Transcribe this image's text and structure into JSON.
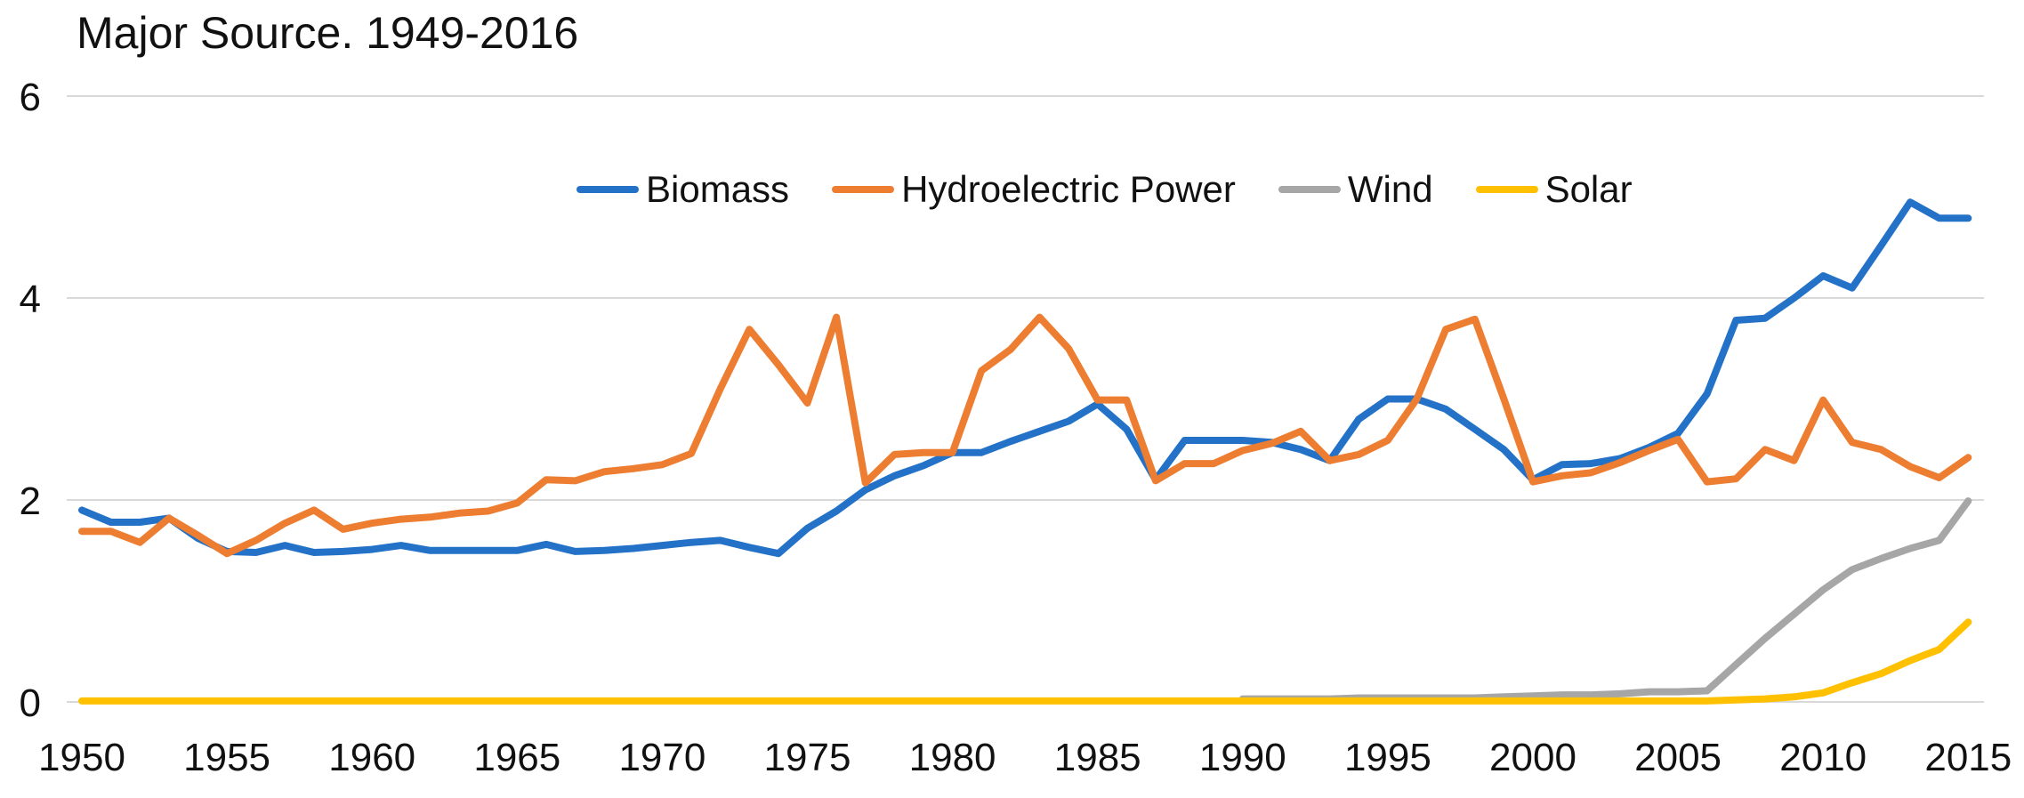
{
  "chart_data": {
    "type": "line",
    "title": "Major Source. 1949-2016",
    "xlabel": "",
    "ylabel": "",
    "x_start": 1950,
    "x_end": 2015,
    "x_step": 1,
    "xticks": [
      1950,
      1955,
      1960,
      1965,
      1970,
      1975,
      1980,
      1985,
      1990,
      1995,
      2000,
      2005,
      2010,
      2015
    ],
    "yticks": [
      0,
      2,
      4,
      6
    ],
    "ylim": [
      0,
      6
    ],
    "grid": "horizontal-only",
    "gridline_color": "#d9d9d9",
    "legend_position": "top-center-horizontal",
    "series": [
      {
        "name": "Biomass",
        "color": "#2372c8",
        "values": [
          1.9,
          1.78,
          1.78,
          1.82,
          1.62,
          1.49,
          1.48,
          1.55,
          1.48,
          1.49,
          1.51,
          1.55,
          1.5,
          1.5,
          1.5,
          1.5,
          1.56,
          1.49,
          1.5,
          1.52,
          1.55,
          1.58,
          1.6,
          1.53,
          1.47,
          1.72,
          1.89,
          2.1,
          2.24,
          2.34,
          2.47,
          2.47,
          2.58,
          2.68,
          2.78,
          2.95,
          2.7,
          2.2,
          2.59,
          2.59,
          2.59,
          2.57,
          2.5,
          2.39,
          2.8,
          3.0,
          3.0,
          2.9,
          2.7,
          2.5,
          2.2,
          2.35,
          2.36,
          2.41,
          2.52,
          2.66,
          3.05,
          3.78,
          3.8,
          4.0,
          4.22,
          4.1,
          4.52,
          4.95,
          4.79,
          4.79
        ]
      },
      {
        "name": "Hydroelectric Power",
        "color": "#ed7d31",
        "values": [
          1.69,
          1.69,
          1.58,
          1.82,
          1.65,
          1.47,
          1.6,
          1.77,
          1.9,
          1.71,
          1.77,
          1.81,
          1.83,
          1.87,
          1.89,
          1.97,
          2.2,
          2.19,
          2.28,
          2.31,
          2.35,
          2.46,
          3.1,
          3.69,
          3.34,
          2.96,
          3.81,
          2.17,
          2.45,
          2.47,
          2.47,
          3.28,
          3.49,
          3.81,
          3.5,
          2.99,
          2.99,
          2.19,
          2.36,
          2.36,
          2.49,
          2.56,
          2.68,
          2.39,
          2.45,
          2.59,
          3.0,
          3.69,
          3.79,
          3.0,
          2.18,
          2.24,
          2.27,
          2.37,
          2.49,
          2.6,
          2.18,
          2.21,
          2.5,
          2.39,
          2.99,
          2.57,
          2.5,
          2.33,
          2.22,
          2.42
        ]
      },
      {
        "name": "Wind",
        "color": "#a6a6a6",
        "values": [
          null,
          null,
          null,
          null,
          null,
          null,
          null,
          null,
          null,
          null,
          null,
          null,
          null,
          null,
          null,
          null,
          null,
          null,
          null,
          null,
          null,
          null,
          null,
          null,
          null,
          null,
          null,
          null,
          null,
          null,
          null,
          null,
          null,
          null,
          null,
          null,
          null,
          null,
          null,
          null,
          0.03,
          0.03,
          0.03,
          0.03,
          0.04,
          0.04,
          0.04,
          0.04,
          0.04,
          0.05,
          0.06,
          0.07,
          0.07,
          0.08,
          0.1,
          0.1,
          0.11,
          0.37,
          0.63,
          0.87,
          1.11,
          1.31,
          1.42,
          1.52,
          1.6,
          1.99
        ]
      },
      {
        "name": "Solar",
        "color": "#ffc000",
        "values": [
          0.01,
          0.01,
          0.01,
          0.01,
          0.01,
          0.01,
          0.01,
          0.01,
          0.01,
          0.01,
          0.01,
          0.01,
          0.01,
          0.01,
          0.01,
          0.01,
          0.01,
          0.01,
          0.01,
          0.01,
          0.01,
          0.01,
          0.01,
          0.01,
          0.01,
          0.01,
          0.01,
          0.01,
          0.01,
          0.01,
          0.01,
          0.01,
          0.01,
          0.01,
          0.01,
          0.01,
          0.01,
          0.01,
          0.01,
          0.01,
          0.01,
          0.01,
          0.01,
          0.01,
          0.01,
          0.01,
          0.01,
          0.01,
          0.01,
          0.01,
          0.01,
          0.01,
          0.01,
          0.01,
          0.01,
          0.01,
          0.01,
          0.02,
          0.03,
          0.05,
          0.09,
          0.19,
          0.28,
          0.41,
          0.52,
          0.79
        ]
      }
    ]
  }
}
